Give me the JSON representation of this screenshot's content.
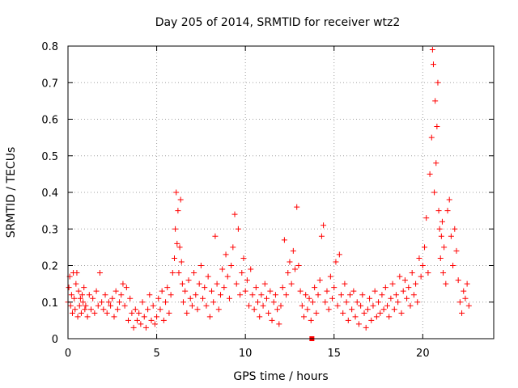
{
  "chart_data": {
    "type": "scatter",
    "title": "Day 205 of 2014, SRMTID for receiver wtz2",
    "xlabel": "GPS time / hours",
    "ylabel": "SRMTID / TECUs",
    "xlim": [
      0,
      24
    ],
    "ylim": [
      0,
      0.8
    ],
    "xticks": [
      0,
      5,
      10,
      15,
      20
    ],
    "yticks": [
      0,
      0.1,
      0.2,
      0.3,
      0.4,
      0.5,
      0.6,
      0.7,
      0.8
    ],
    "xtick_labels": [
      "0",
      "5",
      "10",
      "15",
      "20"
    ],
    "ytick_labels": [
      "0",
      "0.1",
      "0.2",
      "0.3",
      "0.4",
      "0.5",
      "0.6",
      "0.7",
      "0.8"
    ],
    "grid": true,
    "marker": "plus",
    "color": "#ff0000",
    "series": [
      {
        "name": "SRMTID",
        "points": [
          [
            0.0,
            0.1
          ],
          [
            0.05,
            0.14
          ],
          [
            0.1,
            0.17
          ],
          [
            0.15,
            0.09
          ],
          [
            0.2,
            0.12
          ],
          [
            0.25,
            0.07
          ],
          [
            0.3,
            0.18
          ],
          [
            0.35,
            0.11
          ],
          [
            0.4,
            0.08
          ],
          [
            0.45,
            0.15
          ],
          [
            0.5,
            0.18
          ],
          [
            0.55,
            0.06
          ],
          [
            0.6,
            0.13
          ],
          [
            0.65,
            0.09
          ],
          [
            0.7,
            0.11
          ],
          [
            0.75,
            0.07
          ],
          [
            0.8,
            0.12
          ],
          [
            0.85,
            0.1
          ],
          [
            0.9,
            0.14
          ],
          [
            0.95,
            0.08
          ],
          [
            1.0,
            0.09
          ],
          [
            1.1,
            0.06
          ],
          [
            1.2,
            0.12
          ],
          [
            1.3,
            0.08
          ],
          [
            1.4,
            0.11
          ],
          [
            1.5,
            0.07
          ],
          [
            1.6,
            0.13
          ],
          [
            1.7,
            0.09
          ],
          [
            1.8,
            0.18
          ],
          [
            1.9,
            0.1
          ],
          [
            2.0,
            0.08
          ],
          [
            2.1,
            0.12
          ],
          [
            2.2,
            0.07
          ],
          [
            2.3,
            0.1
          ],
          [
            2.4,
            0.09
          ],
          [
            2.5,
            0.11
          ],
          [
            2.6,
            0.06
          ],
          [
            2.7,
            0.13
          ],
          [
            2.8,
            0.08
          ],
          [
            2.9,
            0.1
          ],
          [
            3.0,
            0.12
          ],
          [
            3.1,
            0.15
          ],
          [
            3.2,
            0.09
          ],
          [
            3.3,
            0.14
          ],
          [
            3.4,
            0.05
          ],
          [
            3.5,
            0.11
          ],
          [
            3.6,
            0.07
          ],
          [
            3.7,
            0.03
          ],
          [
            3.8,
            0.08
          ],
          [
            3.9,
            0.05
          ],
          [
            4.0,
            0.07
          ],
          [
            4.1,
            0.04
          ],
          [
            4.2,
            0.1
          ],
          [
            4.3,
            0.06
          ],
          [
            4.4,
            0.03
          ],
          [
            4.5,
            0.08
          ],
          [
            4.6,
            0.12
          ],
          [
            4.7,
            0.05
          ],
          [
            4.8,
            0.09
          ],
          [
            4.9,
            0.04
          ],
          [
            5.0,
            0.06
          ],
          [
            5.1,
            0.11
          ],
          [
            5.2,
            0.08
          ],
          [
            5.3,
            0.13
          ],
          [
            5.4,
            0.05
          ],
          [
            5.5,
            0.1
          ],
          [
            5.6,
            0.14
          ],
          [
            5.7,
            0.07
          ],
          [
            5.8,
            0.12
          ],
          [
            5.9,
            0.18
          ],
          [
            6.0,
            0.22
          ],
          [
            6.05,
            0.3
          ],
          [
            6.1,
            0.4
          ],
          [
            6.15,
            0.26
          ],
          [
            6.2,
            0.35
          ],
          [
            6.25,
            0.18
          ],
          [
            6.3,
            0.25
          ],
          [
            6.35,
            0.38
          ],
          [
            6.4,
            0.21
          ],
          [
            6.45,
            0.15
          ],
          [
            6.5,
            0.1
          ],
          [
            6.6,
            0.13
          ],
          [
            6.7,
            0.07
          ],
          [
            6.8,
            0.16
          ],
          [
            6.9,
            0.11
          ],
          [
            7.0,
            0.09
          ],
          [
            7.1,
            0.18
          ],
          [
            7.2,
            0.12
          ],
          [
            7.3,
            0.08
          ],
          [
            7.4,
            0.15
          ],
          [
            7.5,
            0.2
          ],
          [
            7.6,
            0.11
          ],
          [
            7.7,
            0.14
          ],
          [
            7.8,
            0.09
          ],
          [
            7.9,
            0.17
          ],
          [
            8.0,
            0.06
          ],
          [
            8.1,
            0.13
          ],
          [
            8.2,
            0.1
          ],
          [
            8.3,
            0.28
          ],
          [
            8.4,
            0.15
          ],
          [
            8.5,
            0.08
          ],
          [
            8.6,
            0.12
          ],
          [
            8.7,
            0.19
          ],
          [
            8.8,
            0.14
          ],
          [
            8.9,
            0.23
          ],
          [
            9.0,
            0.17
          ],
          [
            9.1,
            0.11
          ],
          [
            9.2,
            0.2
          ],
          [
            9.3,
            0.25
          ],
          [
            9.4,
            0.34
          ],
          [
            9.5,
            0.15
          ],
          [
            9.6,
            0.3
          ],
          [
            9.7,
            0.12
          ],
          [
            9.8,
            0.18
          ],
          [
            9.9,
            0.22
          ],
          [
            10.0,
            0.13
          ],
          [
            10.1,
            0.16
          ],
          [
            10.2,
            0.09
          ],
          [
            10.3,
            0.19
          ],
          [
            10.4,
            0.12
          ],
          [
            10.5,
            0.08
          ],
          [
            10.6,
            0.14
          ],
          [
            10.7,
            0.1
          ],
          [
            10.8,
            0.06
          ],
          [
            10.9,
            0.12
          ],
          [
            11.0,
            0.09
          ],
          [
            11.1,
            0.15
          ],
          [
            11.2,
            0.11
          ],
          [
            11.3,
            0.07
          ],
          [
            11.4,
            0.13
          ],
          [
            11.5,
            0.05
          ],
          [
            11.6,
            0.1
          ],
          [
            11.7,
            0.12
          ],
          [
            11.8,
            0.08
          ],
          [
            11.9,
            0.04
          ],
          [
            12.0,
            0.09
          ],
          [
            12.1,
            0.14
          ],
          [
            12.2,
            0.27
          ],
          [
            12.3,
            0.12
          ],
          [
            12.4,
            0.18
          ],
          [
            12.5,
            0.21
          ],
          [
            12.6,
            0.15
          ],
          [
            12.7,
            0.24
          ],
          [
            12.8,
            0.19
          ],
          [
            12.9,
            0.36
          ],
          [
            13.0,
            0.2
          ],
          [
            13.1,
            0.13
          ],
          [
            13.2,
            0.09
          ],
          [
            13.3,
            0.06
          ],
          [
            13.4,
            0.12
          ],
          [
            13.5,
            0.08
          ],
          [
            13.6,
            0.11
          ],
          [
            13.7,
            0.05
          ],
          [
            13.8,
            0.1
          ],
          [
            13.9,
            0.14
          ],
          [
            14.0,
            0.07
          ],
          [
            14.1,
            0.12
          ],
          [
            14.2,
            0.16
          ],
          [
            14.3,
            0.28
          ],
          [
            14.4,
            0.31
          ],
          [
            14.5,
            0.1
          ],
          [
            14.6,
            0.13
          ],
          [
            14.7,
            0.08
          ],
          [
            14.8,
            0.17
          ],
          [
            14.9,
            0.11
          ],
          [
            15.0,
            0.14
          ],
          [
            15.1,
            0.21
          ],
          [
            15.2,
            0.09
          ],
          [
            15.3,
            0.23
          ],
          [
            15.4,
            0.12
          ],
          [
            15.5,
            0.07
          ],
          [
            15.6,
            0.15
          ],
          [
            15.7,
            0.1
          ],
          [
            15.8,
            0.05
          ],
          [
            15.9,
            0.12
          ],
          [
            16.0,
            0.08
          ],
          [
            16.1,
            0.13
          ],
          [
            16.2,
            0.06
          ],
          [
            16.3,
            0.1
          ],
          [
            16.4,
            0.04
          ],
          [
            16.5,
            0.09
          ],
          [
            16.6,
            0.12
          ],
          [
            16.7,
            0.07
          ],
          [
            16.8,
            0.03
          ],
          [
            16.9,
            0.08
          ],
          [
            17.0,
            0.11
          ],
          [
            17.1,
            0.05
          ],
          [
            17.2,
            0.09
          ],
          [
            17.3,
            0.13
          ],
          [
            17.4,
            0.06
          ],
          [
            17.5,
            0.1
          ],
          [
            17.6,
            0.07
          ],
          [
            17.7,
            0.12
          ],
          [
            17.8,
            0.08
          ],
          [
            17.9,
            0.14
          ],
          [
            18.0,
            0.09
          ],
          [
            18.1,
            0.06
          ],
          [
            18.2,
            0.11
          ],
          [
            18.3,
            0.15
          ],
          [
            18.4,
            0.08
          ],
          [
            18.5,
            0.12
          ],
          [
            18.6,
            0.1
          ],
          [
            18.7,
            0.17
          ],
          [
            18.8,
            0.07
          ],
          [
            18.9,
            0.13
          ],
          [
            19.0,
            0.16
          ],
          [
            19.1,
            0.11
          ],
          [
            19.2,
            0.14
          ],
          [
            19.3,
            0.09
          ],
          [
            19.4,
            0.18
          ],
          [
            19.5,
            0.12
          ],
          [
            19.6,
            0.15
          ],
          [
            19.7,
            0.1
          ],
          [
            19.8,
            0.22
          ],
          [
            19.9,
            0.17
          ],
          [
            20.0,
            0.2
          ],
          [
            20.1,
            0.25
          ],
          [
            20.2,
            0.33
          ],
          [
            20.3,
            0.18
          ],
          [
            20.4,
            0.45
          ],
          [
            20.5,
            0.55
          ],
          [
            20.55,
            0.79
          ],
          [
            20.6,
            0.75
          ],
          [
            20.65,
            0.4
          ],
          [
            20.7,
            0.65
          ],
          [
            20.75,
            0.48
          ],
          [
            20.8,
            0.58
          ],
          [
            20.85,
            0.7
          ],
          [
            20.9,
            0.35
          ],
          [
            20.95,
            0.3
          ],
          [
            21.0,
            0.22
          ],
          [
            21.05,
            0.28
          ],
          [
            21.1,
            0.32
          ],
          [
            21.15,
            0.18
          ],
          [
            21.2,
            0.25
          ],
          [
            21.3,
            0.15
          ],
          [
            21.4,
            0.35
          ],
          [
            21.5,
            0.38
          ],
          [
            21.6,
            0.28
          ],
          [
            21.7,
            0.2
          ],
          [
            21.8,
            0.3
          ],
          [
            21.9,
            0.24
          ],
          [
            22.0,
            0.16
          ],
          [
            22.1,
            0.1
          ],
          [
            22.2,
            0.07
          ],
          [
            22.3,
            0.13
          ],
          [
            22.4,
            0.11
          ],
          [
            22.5,
            0.15
          ],
          [
            22.6,
            0.09
          ]
        ]
      }
    ],
    "markers": [
      {
        "x": 13.75,
        "y": 0.0,
        "shape": "square"
      }
    ]
  }
}
